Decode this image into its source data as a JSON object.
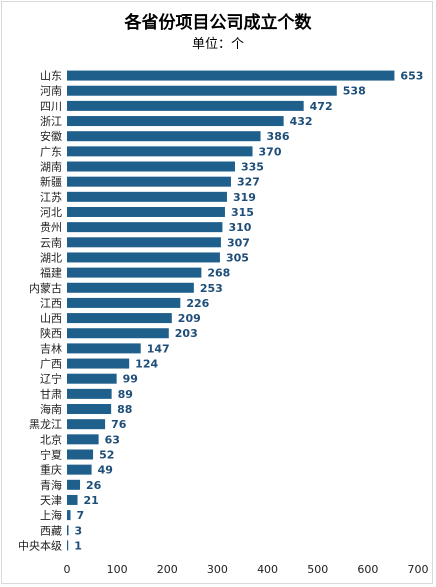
{
  "chart_data": {
    "type": "bar",
    "orientation": "horizontal",
    "title": "各省份项目公司成立个数",
    "subtitle": "单位：个",
    "bar_color": "#1f5f8b",
    "label_color": "#1f4e79",
    "xlim": [
      0,
      700
    ],
    "xticks": [
      0,
      100,
      200,
      300,
      400,
      500,
      600,
      700
    ],
    "categories": [
      "山东",
      "河南",
      "四川",
      "浙江",
      "安徽",
      "广东",
      "湖南",
      "新疆",
      "江苏",
      "河北",
      "贵州",
      "云南",
      "湖北",
      "福建",
      "内蒙古",
      "江西",
      "山西",
      "陕西",
      "吉林",
      "广西",
      "辽宁",
      "甘肃",
      "海南",
      "黑龙江",
      "北京",
      "宁夏",
      "重庆",
      "青海",
      "天津",
      "上海",
      "西藏",
      "中央本级"
    ],
    "values": [
      653,
      538,
      472,
      432,
      386,
      370,
      335,
      327,
      319,
      315,
      310,
      307,
      305,
      268,
      253,
      226,
      209,
      203,
      147,
      124,
      99,
      89,
      88,
      76,
      63,
      52,
      49,
      26,
      21,
      7,
      3,
      1
    ],
    "grid": false,
    "legend": "none"
  }
}
